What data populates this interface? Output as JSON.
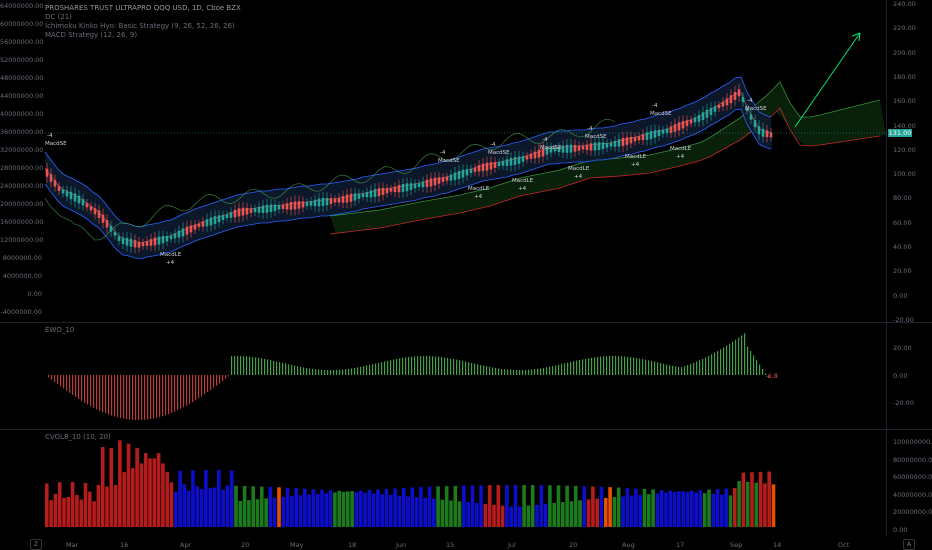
{
  "legend": {
    "title": "PROSHARES TRUST ULTRAPRO QQQ USD, 1D, Cboe BZX",
    "line2": "DC (21)",
    "line3": "Ichimoku Kinko Hyo: Basic Strategy (9, 26, 52, 26, 26)",
    "line4": "MACD Strategy (12, 26, 9)"
  },
  "price_axis_left": [
    "64000000.00",
    "60000000.00",
    "56000000.00",
    "52000000.00",
    "48000000.00",
    "44000000.00",
    "40000000.00",
    "36000000.00",
    "32000000.00",
    "28000000.00",
    "24000000.00",
    "20000000.00",
    "16000000.00",
    "12000000.00",
    "8000000.00",
    "4000000.00",
    "0.00",
    "-4000000.00"
  ],
  "price_axis_right": [
    "240.00",
    "220.00",
    "200.00",
    "180.00",
    "160.00",
    "140.00",
    "120.00",
    "100.00",
    "80.00",
    "60.00",
    "40.00",
    "20.00",
    "0.00",
    "-20.00"
  ],
  "last_price": "131.00",
  "ewo_pane": {
    "title": "EWO_10",
    "axis": [
      "20.00",
      "0.00",
      "-20.00"
    ],
    "last_value": "-1.8"
  },
  "cvol_pane": {
    "title": "CVOL8_10 (10, 20)",
    "axis": [
      "100000000.00",
      "80000000.00",
      "60000000.00",
      "40000000.00",
      "20000000.00",
      "0.00"
    ]
  },
  "time_axis": [
    "Mar",
    "16",
    "Apr",
    "20",
    "May",
    "18",
    "Jun",
    "15",
    "Jul",
    "20",
    "Aug",
    "17",
    "Sep",
    "14",
    "Oct"
  ],
  "badges": {
    "left": "Z",
    "right": "A"
  },
  "signals": {
    "macd_se": "MacdSE",
    "macd_le": "MacdLE",
    "plus4": "+4",
    "minus4": "-4"
  },
  "colors": {
    "bull": "#26a69a",
    "bear": "#ef5350",
    "donchian": "#2962ff",
    "lagging": "#4caf50",
    "arrow": "#00e676",
    "vol_red": "#b71c1c",
    "vol_blue": "#0d0dcc",
    "vol_green": "#1b7a1b",
    "vol_orange": "#e65100"
  }
}
